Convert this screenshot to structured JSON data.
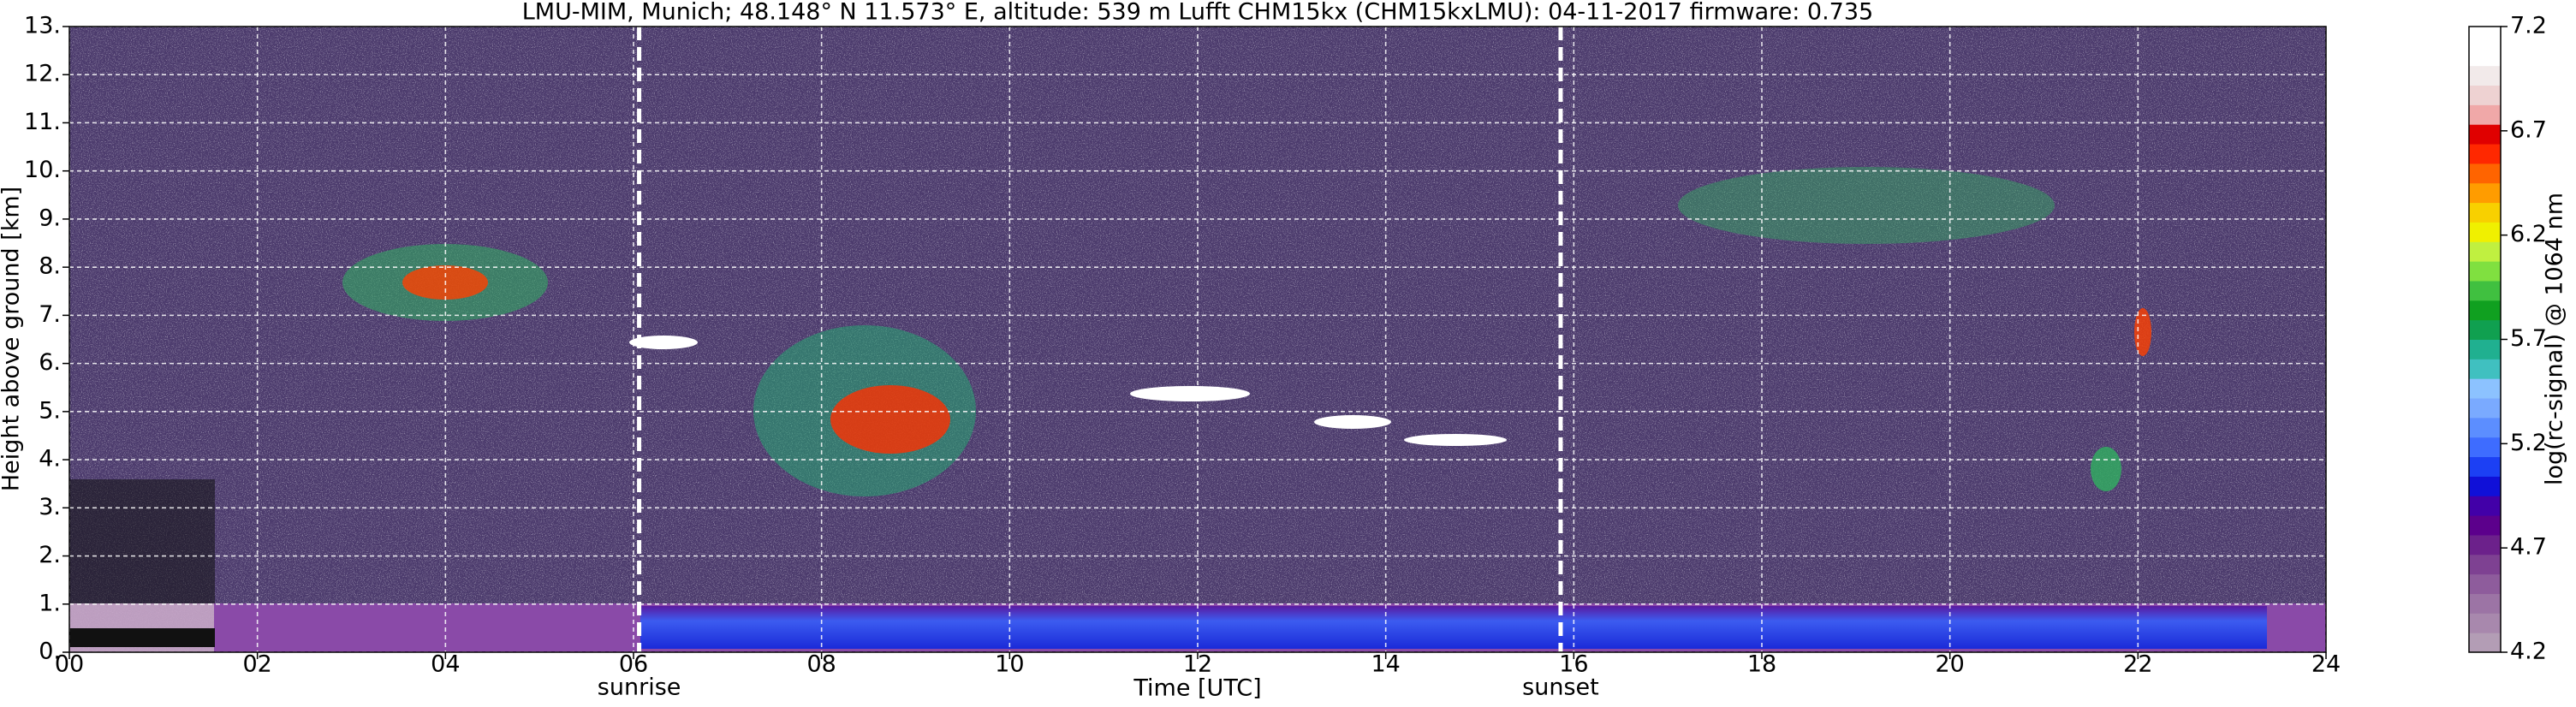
{
  "chart_data": {
    "type": "heatmap",
    "title": "LMU-MIM, Munich; 48.148° N 11.573° E, altitude: 539 m    Lufft CHM15kx (CHM15kxLMU): 04-11-2017    firmware: 0.735",
    "x_label": "Time [UTC]",
    "y_label": "Height above ground [km]",
    "xlim": [
      0,
      24
    ],
    "xticks": [
      {
        "value": 0,
        "label": "00"
      },
      {
        "value": 2,
        "label": "02"
      },
      {
        "value": 4,
        "label": "04"
      },
      {
        "value": 6,
        "label": "06"
      },
      {
        "value": 8,
        "label": "08"
      },
      10,
      12,
      14,
      16,
      18,
      20,
      22,
      24
    ],
    "ylim": [
      0,
      13
    ],
    "yticks": [
      {
        "value": 0,
        "label": "0."
      },
      {
        "value": 1,
        "label": "1."
      },
      {
        "value": 2,
        "label": "2."
      },
      {
        "value": 3,
        "label": "3."
      },
      {
        "value": 4,
        "label": "4."
      },
      {
        "value": 5,
        "label": "5."
      },
      {
        "value": 6,
        "label": "6."
      },
      {
        "value": 7,
        "label": "7."
      },
      {
        "value": 8,
        "label": "8."
      },
      {
        "value": 9,
        "label": "9."
      },
      {
        "value": 10,
        "label": "10."
      },
      {
        "value": 11,
        "label": "11."
      },
      {
        "value": 12,
        "label": "12."
      },
      {
        "value": 13,
        "label": "13."
      }
    ],
    "grid": true,
    "annotations": [
      {
        "text": "sunrise",
        "x": 6.06
      },
      {
        "text": "sunset",
        "x": 15.86
      }
    ],
    "colorbar": {
      "label": "log(rc-signal) @ 1064 nm",
      "lim": [
        4.2,
        7.2
      ],
      "ticks": [
        4.2,
        4.7,
        5.2,
        5.7,
        6.2,
        6.7,
        7.2
      ],
      "colors": [
        "#b39db5",
        "#a888ad",
        "#9c74a5",
        "#8e5c9c",
        "#7e4192",
        "#6c218b",
        "#5c008c",
        "#4200a8",
        "#1010d8",
        "#1c40f4",
        "#3e6cff",
        "#5c8eff",
        "#7aaaff",
        "#8cc2ff",
        "#40c0c0",
        "#20b090",
        "#10a050",
        "#10a020",
        "#40c040",
        "#80e040",
        "#c0f040",
        "#f0f000",
        "#f8d000",
        "#ff9c00",
        "#ff6400",
        "#ff2800",
        "#e00000",
        "#f0a8a8",
        "#eed2d2",
        "#f2eaea",
        "#ffffff",
        "#ffffff"
      ]
    }
  }
}
